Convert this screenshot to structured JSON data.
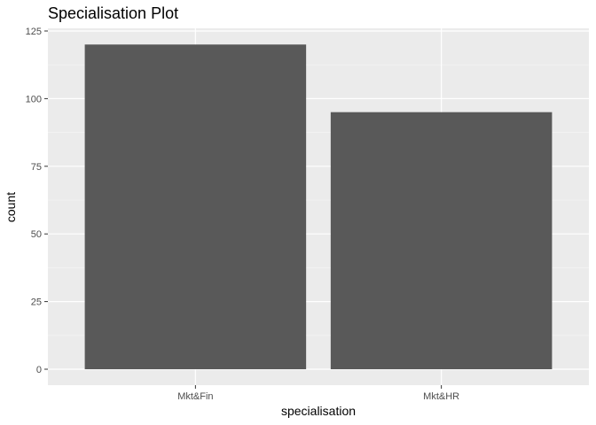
{
  "chart_data": {
    "type": "bar",
    "title": "Specialisation Plot",
    "xlabel": "specialisation",
    "ylabel": "count",
    "categories": [
      "Mkt&Fin",
      "Mkt&HR"
    ],
    "values": [
      120,
      95
    ],
    "ylim": [
      0,
      125
    ],
    "yticks": [
      0,
      25,
      50,
      75,
      100,
      125
    ],
    "ytick_labels": [
      "0",
      "25",
      "50",
      "75",
      "100",
      "125"
    ],
    "grid": true,
    "legend": "none"
  },
  "colors": {
    "panel_background": "#ebebeb",
    "grid_major": "#ffffff",
    "grid_minor": "#f4f4f4",
    "bar_fill": "#595959",
    "tick_text": "#4d4d4d",
    "text": "#000000"
  }
}
